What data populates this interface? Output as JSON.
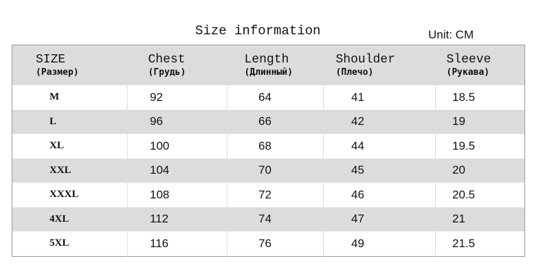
{
  "title": "Size information",
  "unit": "Unit: CM",
  "headers": [
    {
      "en": "SIZE",
      "ru": "(Размер)"
    },
    {
      "en": "Chest",
      "ru": "(Грудь)"
    },
    {
      "en": "Length",
      "ru": "(Длинный)"
    },
    {
      "en": "Shoulder",
      "ru": "(Плечо)"
    },
    {
      "en": "Sleeve",
      "ru": "(Рукава)"
    }
  ],
  "rows": [
    [
      "M",
      "92",
      "64",
      "41",
      "18.5"
    ],
    [
      "L",
      "96",
      "66",
      "42",
      "19"
    ],
    [
      "XL",
      "100",
      "68",
      "44",
      "19.5"
    ],
    [
      "XXL",
      "104",
      "70",
      "45",
      "20"
    ],
    [
      "XXXL",
      "108",
      "72",
      "46",
      "20.5"
    ],
    [
      "4XL",
      "112",
      "74",
      "47",
      "21"
    ],
    [
      "5XL",
      "116",
      "76",
      "49",
      "21.5"
    ]
  ],
  "colors": {
    "header_bg": "#dcdcdc",
    "alt_row_bg": "#dcdcdc",
    "border": "#999999"
  }
}
